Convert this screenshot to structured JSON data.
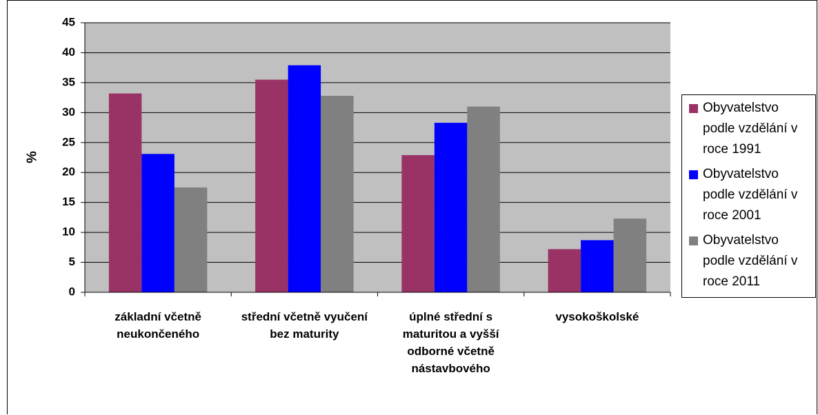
{
  "chart_data": {
    "type": "bar",
    "y_label": "%",
    "categories": [
      "základní včetně neukončeného",
      "střední včetně vyučení bez maturity",
      "úplné střední s maturitou a vyšší odborné včetně nástavbového",
      "vysokoškolské"
    ],
    "series": [
      {
        "name": "Obyvatelstvo podle vzdělání v roce 1991",
        "color": "#993366",
        "values": [
          33.2,
          35.5,
          22.9,
          7.2
        ]
      },
      {
        "name": "Obyvatelstvo podle vzdělání v roce 2001",
        "color": "#0000ff",
        "values": [
          23.1,
          37.9,
          28.3,
          8.7
        ]
      },
      {
        "name": "Obyvatelstvo podle vzdělání v roce 2011",
        "color": "#808080",
        "values": [
          17.5,
          32.8,
          31.0,
          12.3
        ]
      }
    ],
    "ylim": [
      0,
      45
    ],
    "yticks": [
      0,
      5,
      10,
      15,
      20,
      25,
      30,
      35,
      40,
      45
    ],
    "grid": true,
    "plot_background": "#c0c0c0",
    "legend": "right"
  }
}
